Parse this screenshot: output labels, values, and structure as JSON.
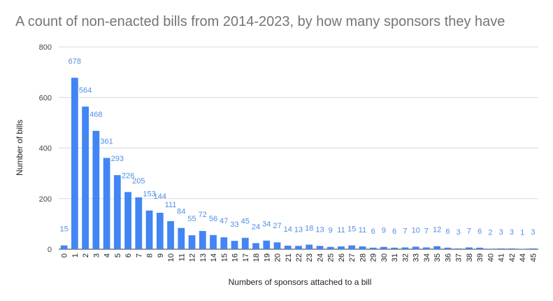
{
  "chart_data": {
    "type": "bar",
    "title": "A count of non-enacted bills from 2014-2023, by how many sponsors they have",
    "xlabel": "Numbers of sponsors attached to a bill",
    "ylabel": "Number of bills",
    "ylim": [
      0,
      800
    ],
    "yticks": [
      0,
      200,
      400,
      600,
      800
    ],
    "grid": true,
    "legend": "none",
    "bar_color": "#4285f4",
    "label_color": "#4f8fe6",
    "categories": [
      "0",
      "1",
      "2",
      "3",
      "4",
      "5",
      "6",
      "7",
      "8",
      "9",
      "10",
      "11",
      "12",
      "13",
      "14",
      "15",
      "16",
      "17",
      "18",
      "19",
      "20",
      "21",
      "22",
      "23",
      "24",
      "25",
      "26",
      "27",
      "28",
      "29",
      "30",
      "31",
      "32",
      "33",
      "34",
      "35",
      "36",
      "37",
      "38",
      "39",
      "40",
      "41",
      "42",
      "44",
      "45"
    ],
    "values": [
      15,
      678,
      564,
      468,
      361,
      293,
      226,
      205,
      153,
      144,
      111,
      84,
      55,
      72,
      56,
      47,
      33,
      45,
      24,
      34,
      27,
      14,
      13,
      18,
      13,
      9,
      11,
      15,
      11,
      6,
      9,
      6,
      7,
      10,
      7,
      12,
      6,
      3,
      7,
      6,
      2,
      3,
      3,
      1,
      3
    ]
  }
}
